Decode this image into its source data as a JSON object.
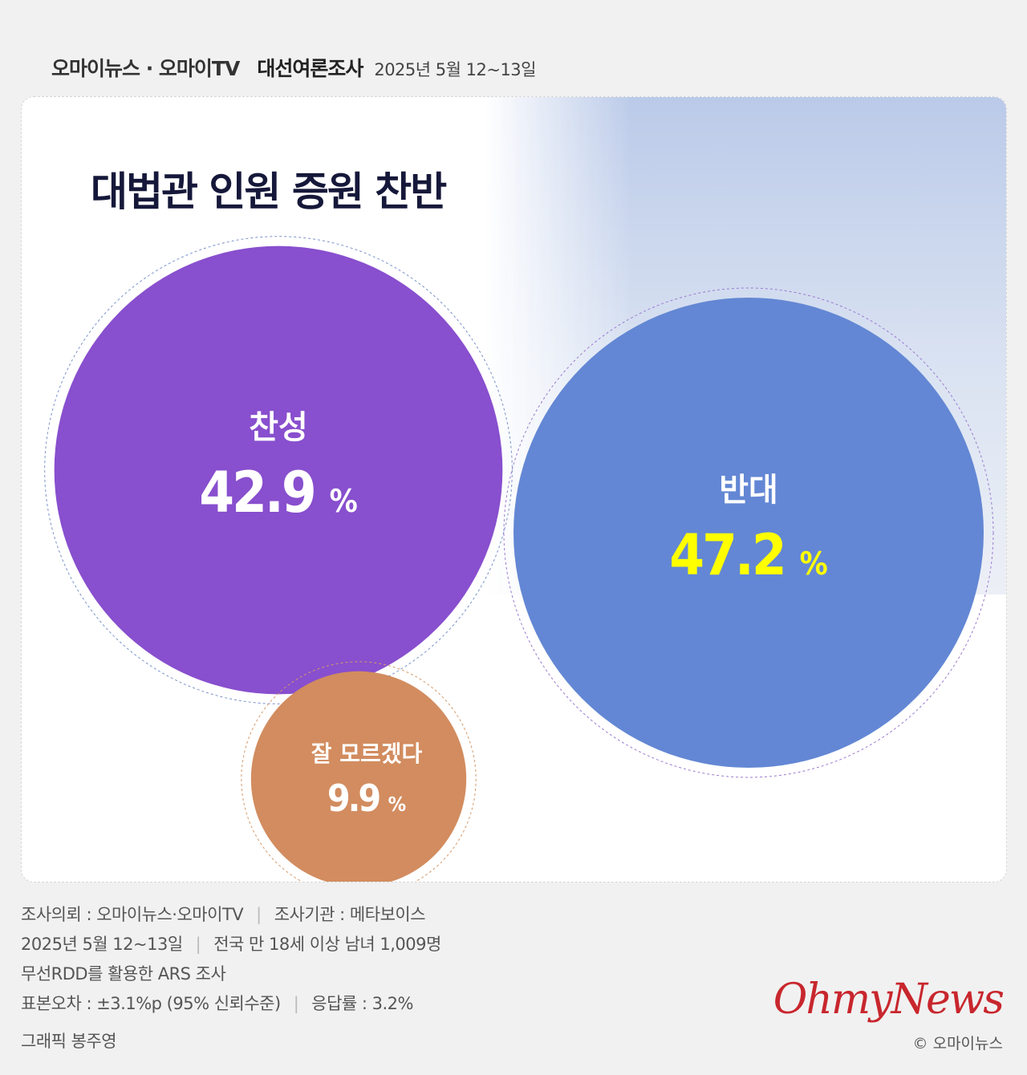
{
  "header": {
    "brand": "오마이뉴스 · 오마이TV",
    "survey": "대선여론조사",
    "date": "2025년 5월 12~13일"
  },
  "chart_data": {
    "type": "bubble",
    "title": "대법관 인원 증원 찬반",
    "unit": "%",
    "categories": [
      "찬성",
      "반대",
      "잘 모르겠다"
    ],
    "values": [
      42.9,
      47.2,
      9.9
    ],
    "colors": [
      "#884fce",
      "#6387d4",
      "#d28c5f"
    ],
    "value_colors": [
      "#ffffff",
      "#ffff00",
      "#ffffff"
    ]
  },
  "footer": {
    "line1_a": "조사의뢰 : 오마이뉴스·오마이TV",
    "line1_b": "조사기관 : 메타보이스",
    "line2_a": "2025년 5월 12~13일",
    "line2_b": "전국 만 18세 이상 남녀 1,009명",
    "line3": "무선RDD를 활용한 ARS 조사",
    "line4_a": "표본오차 : ±3.1%p (95% 신뢰수준)",
    "line4_b": "응답률 : 3.2%",
    "credit": "그래픽 봉주영",
    "separator": "|"
  },
  "logo": "OhmyNews",
  "copyright": "© 오마이뉴스"
}
